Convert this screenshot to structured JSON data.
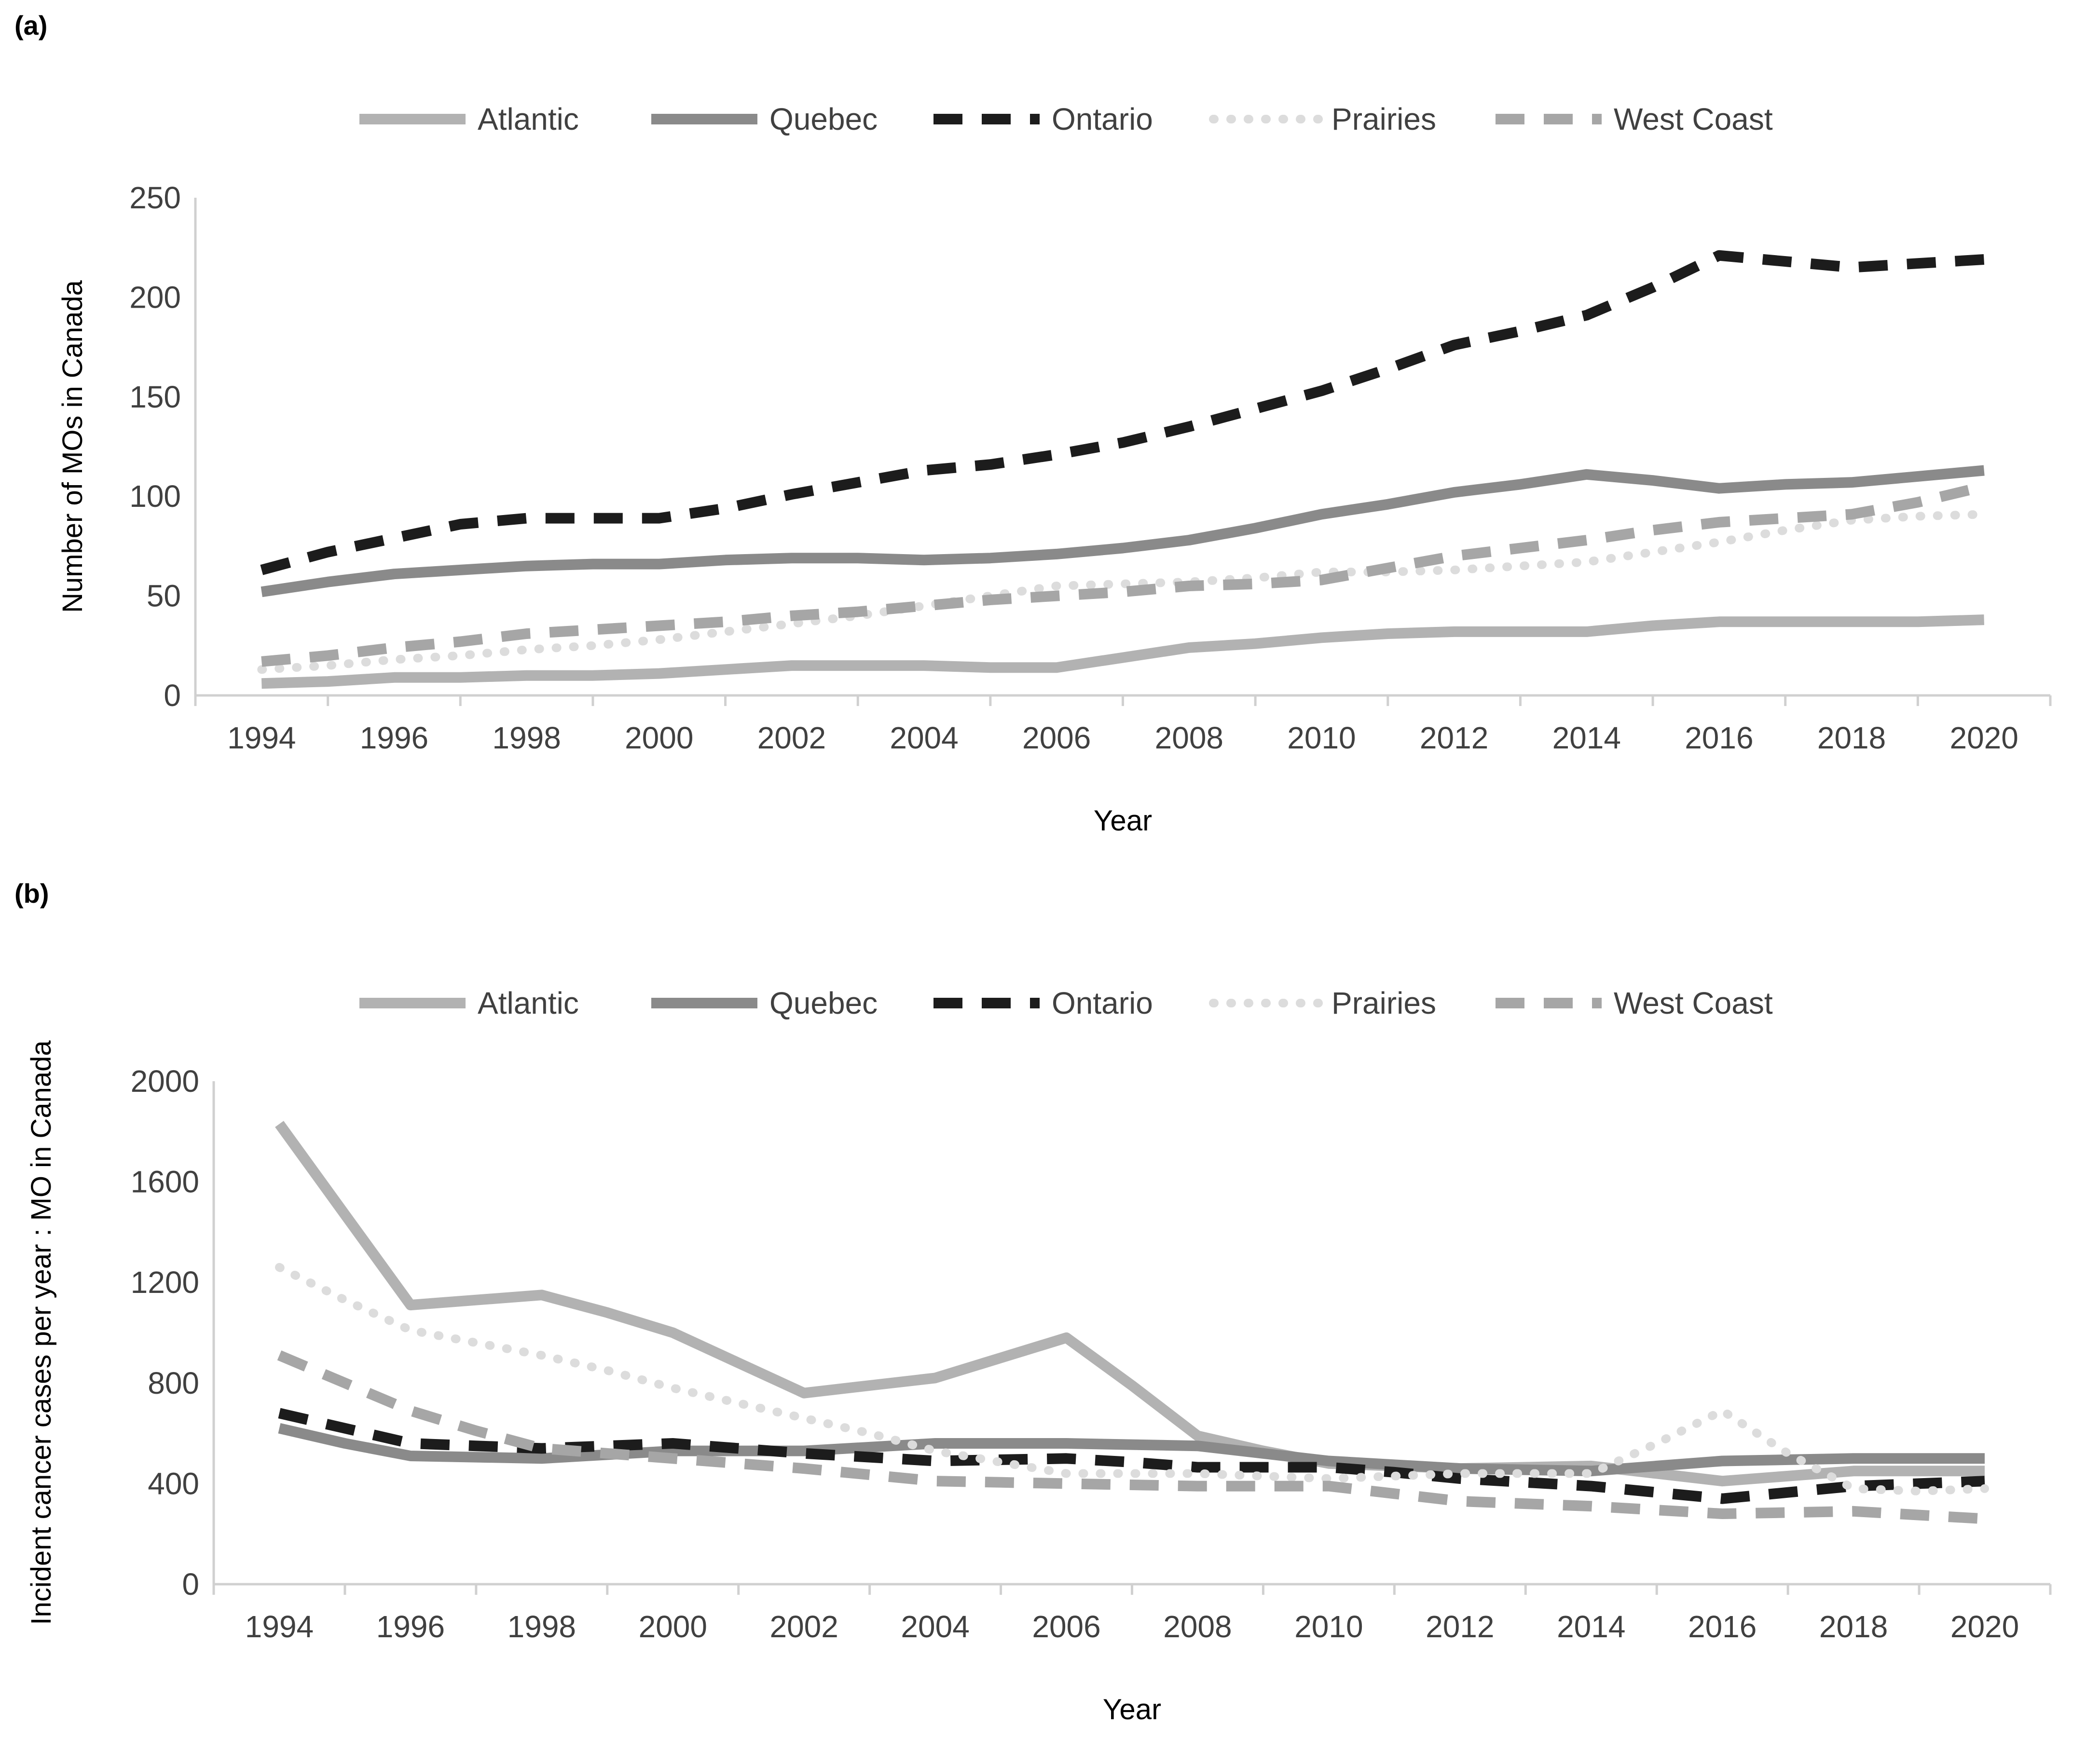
{
  "chart_data": [
    {
      "panel_label": "(a)",
      "type": "line",
      "title": "",
      "xlabel": "Year",
      "ylabel": "Number of MOs in Canada",
      "x": [
        1994,
        1995,
        1996,
        1997,
        1998,
        1999,
        2000,
        2001,
        2002,
        2003,
        2004,
        2005,
        2006,
        2007,
        2008,
        2009,
        2010,
        2011,
        2012,
        2013,
        2014,
        2015,
        2016,
        2017,
        2018,
        2019,
        2020
      ],
      "xticks": [
        1994,
        1996,
        1998,
        2000,
        2002,
        2004,
        2006,
        2008,
        2010,
        2012,
        2014,
        2016,
        2018,
        2020
      ],
      "xlim": [
        1993,
        2021
      ],
      "ylim": [
        0,
        250
      ],
      "yticks": [
        0,
        50,
        100,
        150,
        200,
        250
      ],
      "grid": false,
      "legend_position": "top",
      "series": [
        {
          "name": "Atlantic",
          "style": "solid-light",
          "values": [
            6,
            7,
            9,
            9,
            10,
            10,
            11,
            13,
            15,
            15,
            15,
            14,
            14,
            19,
            24,
            26,
            29,
            31,
            32,
            32,
            32,
            35,
            37,
            37,
            37,
            37,
            38
          ]
        },
        {
          "name": "Quebec",
          "style": "solid-dark",
          "values": [
            52,
            57,
            61,
            63,
            65,
            66,
            66,
            68,
            69,
            69,
            68,
            69,
            71,
            74,
            78,
            84,
            91,
            96,
            102,
            106,
            111,
            108,
            104,
            106,
            107,
            110,
            113
          ]
        },
        {
          "name": "Ontario",
          "style": "dash-black",
          "values": [
            63,
            72,
            79,
            86,
            89,
            89,
            89,
            94,
            101,
            107,
            113,
            116,
            121,
            127,
            135,
            144,
            153,
            164,
            176,
            183,
            191,
            205,
            221,
            218,
            215,
            217,
            219
          ]
        },
        {
          "name": "Prairies",
          "style": "dot-light",
          "values": [
            13,
            15,
            18,
            20,
            23,
            25,
            28,
            32,
            36,
            40,
            45,
            50,
            55,
            56,
            57,
            59,
            62,
            62,
            63,
            65,
            67,
            72,
            77,
            83,
            88,
            90,
            91
          ]
        },
        {
          "name": "West Coast",
          "style": "dash-gray",
          "values": [
            17,
            20,
            24,
            27,
            31,
            33,
            35,
            37,
            40,
            42,
            45,
            48,
            50,
            52,
            55,
            56,
            58,
            64,
            70,
            74,
            78,
            83,
            87,
            89,
            91,
            97,
            105
          ]
        }
      ]
    },
    {
      "panel_label": "(b)",
      "type": "line",
      "title": "",
      "xlabel": "Year",
      "ylabel": "Incident cancer cases per year : MO in Canada",
      "x": [
        1994,
        1995,
        1996,
        1997,
        1998,
        1999,
        2000,
        2001,
        2002,
        2003,
        2004,
        2005,
        2006,
        2007,
        2008,
        2009,
        2010,
        2011,
        2012,
        2013,
        2014,
        2015,
        2016,
        2017,
        2018,
        2019,
        2020
      ],
      "xticks": [
        1994,
        1996,
        1998,
        2000,
        2002,
        2004,
        2006,
        2008,
        2010,
        2012,
        2014,
        2016,
        2018,
        2020
      ],
      "xlim": [
        1993,
        2021
      ],
      "ylim": [
        0,
        2000
      ],
      "yticks": [
        0,
        400,
        800,
        1200,
        1600,
        2000
      ],
      "grid": false,
      "legend_position": "top",
      "series": [
        {
          "name": "Atlantic",
          "style": "solid-light",
          "values": [
            1830,
            1470,
            1110,
            1130,
            1150,
            1080,
            1000,
            880,
            760,
            790,
            820,
            900,
            980,
            790,
            590,
            530,
            480,
            470,
            460,
            465,
            470,
            440,
            410,
            430,
            450,
            450,
            450
          ]
        },
        {
          "name": "Quebec",
          "style": "solid-dark",
          "values": [
            620,
            560,
            510,
            505,
            500,
            515,
            530,
            530,
            530,
            545,
            560,
            560,
            560,
            555,
            550,
            520,
            490,
            475,
            460,
            455,
            450,
            470,
            490,
            495,
            500,
            500,
            500
          ]
        },
        {
          "name": "Ontario",
          "style": "dash-black",
          "values": [
            680,
            620,
            560,
            550,
            540,
            550,
            560,
            540,
            520,
            505,
            490,
            495,
            500,
            485,
            465,
            465,
            465,
            445,
            420,
            405,
            390,
            365,
            340,
            365,
            390,
            400,
            410
          ]
        },
        {
          "name": "Prairies",
          "style": "dot-light",
          "values": [
            1260,
            1130,
            1010,
            960,
            910,
            850,
            780,
            720,
            660,
            600,
            530,
            485,
            440,
            440,
            440,
            430,
            420,
            430,
            440,
            440,
            440,
            560,
            690,
            520,
            380,
            370,
            380
          ]
        },
        {
          "name": "West Coast",
          "style": "dash-gray",
          "values": [
            910,
            800,
            690,
            610,
            540,
            520,
            500,
            480,
            460,
            435,
            410,
            405,
            400,
            395,
            390,
            390,
            390,
            360,
            330,
            320,
            310,
            295,
            280,
            285,
            290,
            275,
            260
          ]
        }
      ]
    }
  ]
}
